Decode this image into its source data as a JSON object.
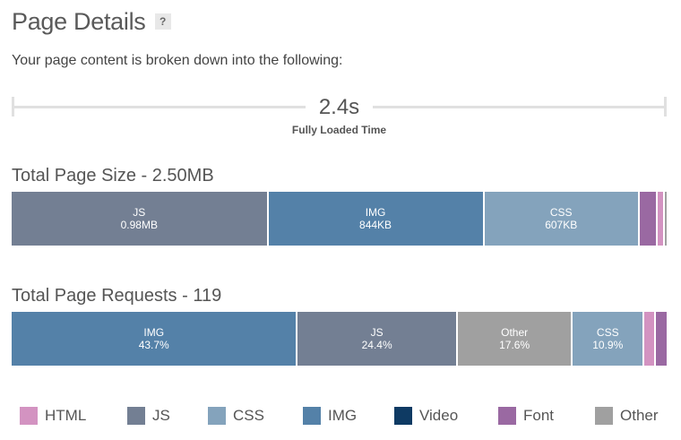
{
  "header": {
    "title": "Page Details",
    "help_label": "?",
    "subtitle": "Your page content is broken down into the following:"
  },
  "timeline": {
    "value": "2.4s",
    "label": "Fully Loaded Time"
  },
  "colors": {
    "HTML": "#d393c1",
    "JS": "#737f93",
    "CSS": "#84a3bc",
    "IMG": "#5481a8",
    "Video": "#0e3a63",
    "Font": "#9a69a2",
    "Other": "#a0a0a0"
  },
  "size": {
    "title": "Total Page Size - 2.50MB",
    "segments": [
      {
        "type": "JS",
        "name": "JS",
        "value": "0.98MB",
        "share": 0.392
      },
      {
        "type": "IMG",
        "name": "IMG",
        "value": "844KB",
        "share": 0.3297
      },
      {
        "type": "CSS",
        "name": "CSS",
        "value": "607KB",
        "share": 0.2371
      },
      {
        "type": "Font",
        "name": "",
        "value": "",
        "share": 0.0273
      },
      {
        "type": "HTML",
        "name": "",
        "value": "",
        "share": 0.011
      },
      {
        "type": "Other",
        "name": "",
        "value": "",
        "share": 0.0029
      }
    ]
  },
  "requests": {
    "title": "Total Page Requests - 119",
    "segments": [
      {
        "type": "IMG",
        "name": "IMG",
        "value": "43.7%",
        "share": 0.437
      },
      {
        "type": "JS",
        "name": "JS",
        "value": "24.4%",
        "share": 0.244
      },
      {
        "type": "Other",
        "name": "Other",
        "value": "17.6%",
        "share": 0.176
      },
      {
        "type": "CSS",
        "name": "CSS",
        "value": "10.9%",
        "share": 0.109
      },
      {
        "type": "HTML",
        "name": "",
        "value": "",
        "share": 0.018
      },
      {
        "type": "Font",
        "name": "",
        "value": "",
        "share": 0.016
      }
    ]
  },
  "legend": {
    "items": [
      "HTML",
      "JS",
      "CSS",
      "IMG",
      "Video",
      "Font",
      "Other"
    ]
  }
}
